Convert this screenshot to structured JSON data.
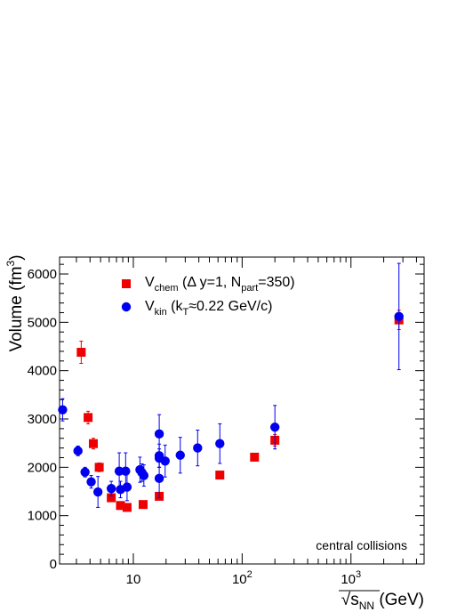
{
  "chart_data": {
    "type": "scatter",
    "xscale": "log",
    "xlim": [
      2.1,
      4700
    ],
    "ylim": [
      0,
      6350
    ],
    "x_ticks": [
      {
        "value": 10,
        "base": "10",
        "exp": ""
      },
      {
        "value": 100,
        "base": "10",
        "exp": "2"
      },
      {
        "value": 1000,
        "base": "10",
        "exp": "3"
      }
    ],
    "y_ticks": [
      "0",
      "1000",
      "2000",
      "3000",
      "4000",
      "5000",
      "6000"
    ],
    "xlabel": {
      "prefix": "√",
      "main": "s",
      "sub": "NN",
      "suffix": " (GeV)"
    },
    "ylabel": {
      "main": "Volume (fm",
      "sup": "3",
      "suffix": ")"
    },
    "annotation": "central collisions",
    "legend_position": "top-left",
    "series": [
      {
        "name": "V_chem (Δ y=1, N_part=350)",
        "legend": {
          "main": "V",
          "sub": "chem",
          "mid": " (Δ y=1, N",
          "sub2": "part",
          "tail": "=350)"
        },
        "marker": "square",
        "color": "#ee0000",
        "points": [
          {
            "x": 3.32,
            "y": 4380,
            "err": 230
          },
          {
            "x": 3.84,
            "y": 3030,
            "err": 130
          },
          {
            "x": 4.29,
            "y": 2490,
            "err": 110
          },
          {
            "x": 4.86,
            "y": 2000,
            "err": 90
          },
          {
            "x": 6.27,
            "y": 1370,
            "err": 80
          },
          {
            "x": 7.62,
            "y": 1210,
            "err": 70
          },
          {
            "x": 8.76,
            "y": 1170,
            "err": 60
          },
          {
            "x": 12.3,
            "y": 1230,
            "err": 60
          },
          {
            "x": 17.3,
            "y": 1400,
            "err": 60
          },
          {
            "x": 62.4,
            "y": 1840,
            "err": 70
          },
          {
            "x": 130,
            "y": 2210,
            "err": 80
          },
          {
            "x": 200,
            "y": 2560,
            "err": 120
          },
          {
            "x": 2760,
            "y": 5050,
            "err": 200
          }
        ]
      },
      {
        "name": "V_kin (k_T≈0.22 GeV/c)",
        "legend": {
          "main": "V",
          "sub": "kin",
          "mid": " (k",
          "sub2": "T",
          "tail": "≈0.22 GeV/c)"
        },
        "marker": "circle",
        "color": "#0000ee",
        "points": [
          {
            "x": 2.24,
            "y": 3190,
            "err": 230
          },
          {
            "x": 3.1,
            "y": 2340,
            "err": 100
          },
          {
            "x": 3.6,
            "y": 1900,
            "err": 100
          },
          {
            "x": 4.1,
            "y": 1700,
            "err": 130
          },
          {
            "x": 4.73,
            "y": 1490,
            "err": 320
          },
          {
            "x": 6.27,
            "y": 1560,
            "err": 150
          },
          {
            "x": 7.42,
            "y": 1920,
            "err": 380
          },
          {
            "x": 7.62,
            "y": 1540,
            "err": 170
          },
          {
            "x": 8.5,
            "y": 1920,
            "err": 380
          },
          {
            "x": 8.76,
            "y": 1590,
            "err": 280
          },
          {
            "x": 11.5,
            "y": 1950,
            "err": 260
          },
          {
            "x": 12.0,
            "y": 1890,
            "err": 180
          },
          {
            "x": 12.5,
            "y": 1830,
            "err": 220
          },
          {
            "x": 17.3,
            "y": 2690,
            "err": 400
          },
          {
            "x": 17.3,
            "y": 2240,
            "err": 240
          },
          {
            "x": 17.3,
            "y": 2190,
            "err": 190
          },
          {
            "x": 17.3,
            "y": 1770,
            "err": 400
          },
          {
            "x": 19.6,
            "y": 2130,
            "err": 330
          },
          {
            "x": 27,
            "y": 2250,
            "err": 370
          },
          {
            "x": 39,
            "y": 2400,
            "err": 370
          },
          {
            "x": 62.4,
            "y": 2490,
            "err": 410
          },
          {
            "x": 200,
            "y": 2830,
            "err": 450
          },
          {
            "x": 2760,
            "y": 5120,
            "err": 1100
          }
        ]
      }
    ]
  }
}
